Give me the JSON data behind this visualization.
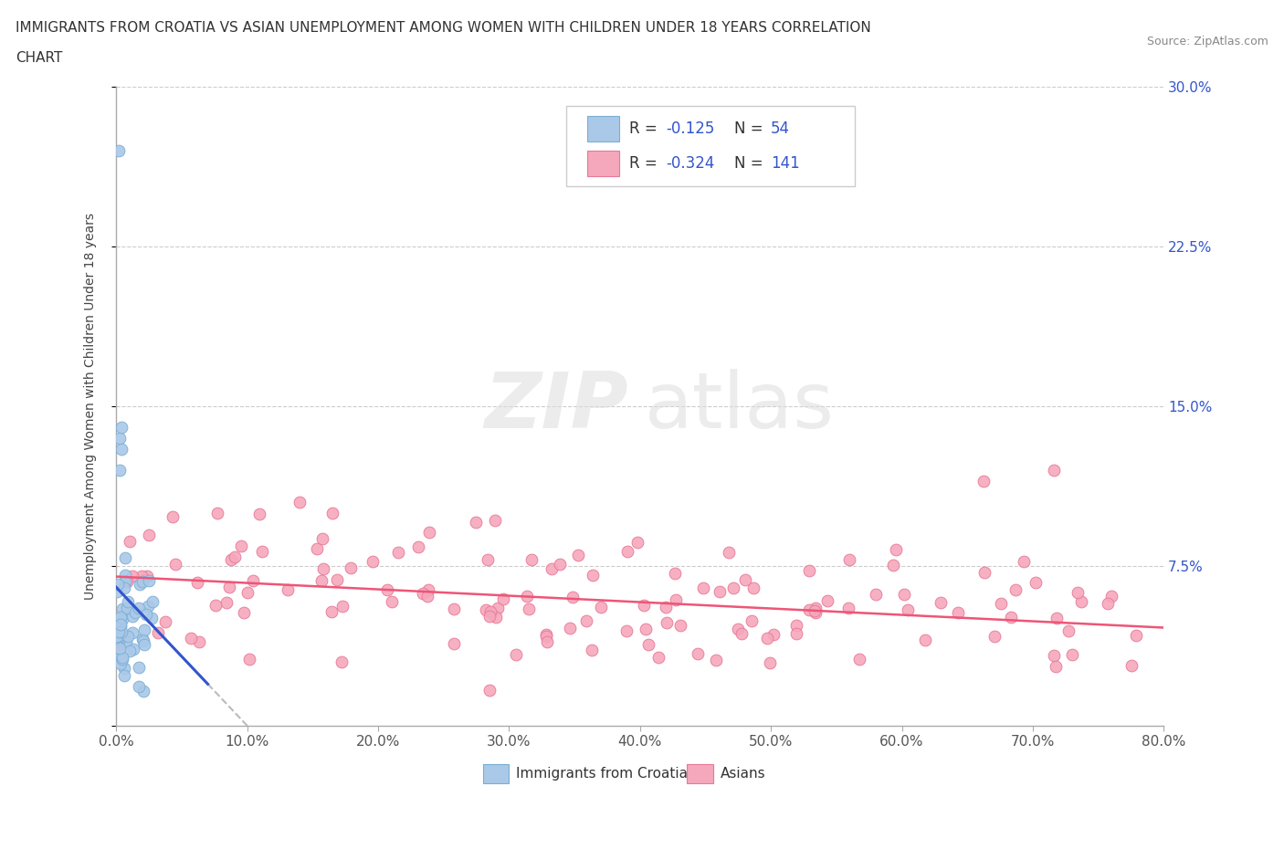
{
  "title_line1": "IMMIGRANTS FROM CROATIA VS ASIAN UNEMPLOYMENT AMONG WOMEN WITH CHILDREN UNDER 18 YEARS CORRELATION",
  "title_line2": "CHART",
  "source": "Source: ZipAtlas.com",
  "ylabel": "Unemployment Among Women with Children Under 18 years",
  "xlim": [
    0,
    0.8
  ],
  "ylim": [
    0,
    0.3
  ],
  "xticks": [
    0.0,
    0.1,
    0.2,
    0.3,
    0.4,
    0.5,
    0.6,
    0.7,
    0.8
  ],
  "yticks": [
    0.0,
    0.075,
    0.15,
    0.225,
    0.3
  ],
  "xticklabels": [
    "0.0%",
    "10.0%",
    "20.0%",
    "30.0%",
    "40.0%",
    "50.0%",
    "60.0%",
    "70.0%",
    "80.0%"
  ],
  "yticklabels_right": [
    "",
    "7.5%",
    "15.0%",
    "22.5%",
    "30.0%"
  ],
  "croatia_color": "#aac8e8",
  "asia_color": "#f5a8bc",
  "croatia_edge": "#7aafd4",
  "asia_edge": "#e87898",
  "trendline_croatia": "#3355cc",
  "trendline_asia": "#ee5577",
  "trendline_dashed": "#bbbbbb",
  "legend_label1": "Immigrants from Croatia",
  "legend_label2": "Asians",
  "watermark_zip": "ZIP",
  "watermark_atlas": "atlas",
  "title_fontsize": 11,
  "tick_fontsize": 11,
  "right_tick_color": "#3355cc",
  "grid_color": "#cccccc",
  "axis_color": "#aaaaaa"
}
